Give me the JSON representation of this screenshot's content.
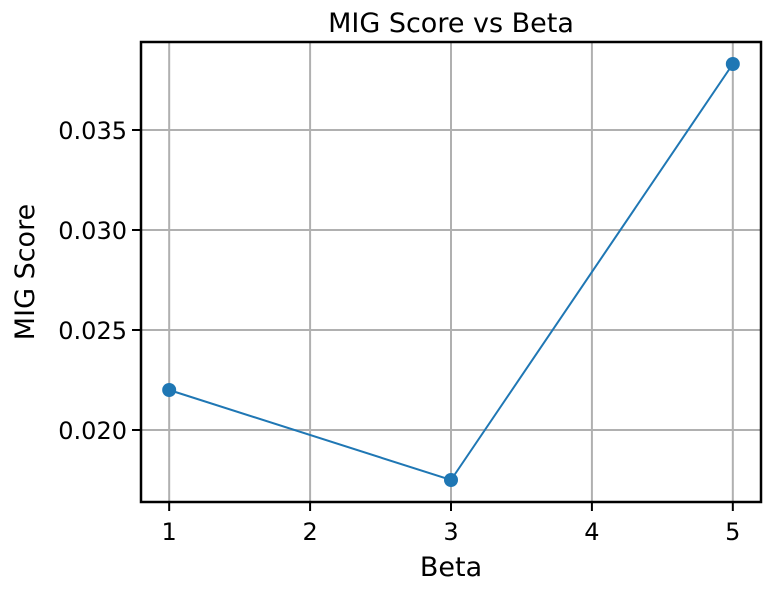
{
  "chart_data": {
    "type": "line",
    "title": "MIG Score vs Beta",
    "xlabel": "Beta",
    "ylabel": "MIG Score",
    "x": [
      1,
      3,
      5
    ],
    "series": [
      {
        "values": [
          0.022,
          0.0175,
          0.0383
        ],
        "color": "#1f77b4",
        "marker": "circle"
      }
    ],
    "xlim": [
      0.8,
      5.2
    ],
    "ylim": [
      0.0164,
      0.0394
    ],
    "xticks": [
      1,
      2,
      3,
      4,
      5
    ],
    "xtick_labels": [
      "1",
      "2",
      "3",
      "4",
      "5"
    ],
    "yticks": [
      0.02,
      0.025,
      0.03,
      0.035
    ],
    "ytick_labels": [
      "0.020",
      "0.025",
      "0.030",
      "0.035"
    ],
    "grid": true,
    "legend": false
  }
}
